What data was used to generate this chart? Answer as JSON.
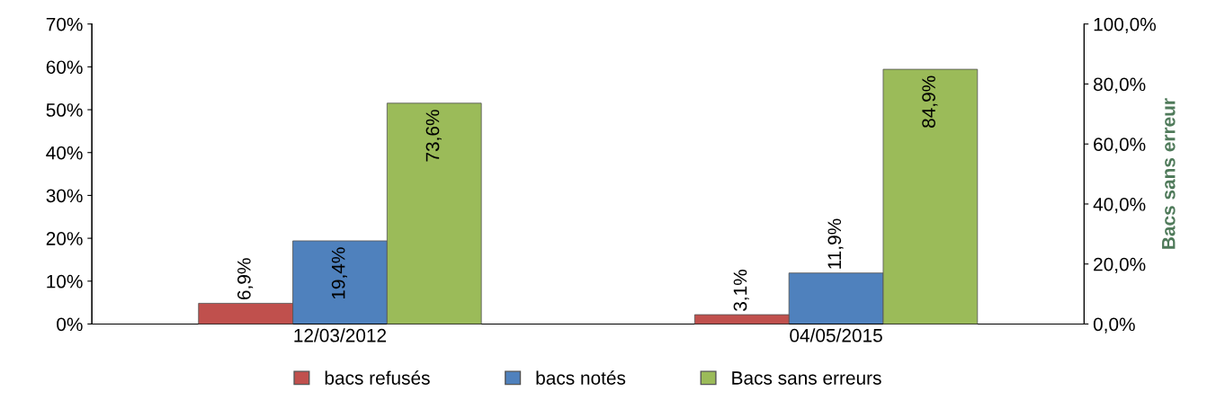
{
  "chart_data": {
    "type": "bar",
    "categories": [
      "12/03/2012",
      "04/05/2015"
    ],
    "series": [
      {
        "name": "bacs refusés",
        "color": "#c0504d",
        "axis": "y2",
        "values": [
          6.9,
          3.1
        ],
        "value_labels": [
          "6,9%",
          "3,1%"
        ]
      },
      {
        "name": "bacs notés",
        "color": "#4f81bd",
        "values": [
          19.4,
          11.9
        ],
        "value_labels": [
          "19,4%",
          "11,9%"
        ]
      },
      {
        "name": "Bacs sans erreurs",
        "color": "#9bbb59",
        "axis": "y2",
        "values": [
          73.6,
          84.9
        ],
        "value_labels": [
          "73,6%",
          "84,9%"
        ]
      }
    ],
    "ylim": [
      0,
      70
    ],
    "yticks": [
      {
        "value": 0,
        "label": "0%"
      },
      {
        "value": 10,
        "label": "10%"
      },
      {
        "value": 20,
        "label": "20%"
      },
      {
        "value": 30,
        "label": "30%"
      },
      {
        "value": 40,
        "label": "40%"
      },
      {
        "value": 50,
        "label": "50%"
      },
      {
        "value": 60,
        "label": "60%"
      },
      {
        "value": 70,
        "label": "70%"
      }
    ],
    "y2lim": [
      0,
      100
    ],
    "y2ticks": [
      {
        "value": 0,
        "label": "0,0%"
      },
      {
        "value": 20,
        "label": "20,0%"
      },
      {
        "value": 40,
        "label": "40,0%"
      },
      {
        "value": 60,
        "label": "60,0%"
      },
      {
        "value": 80,
        "label": "80,0%"
      },
      {
        "value": 100,
        "label": "100,0%"
      }
    ],
    "y2label": "Bacs sans erreur",
    "grid": false,
    "legend": "bottom"
  }
}
